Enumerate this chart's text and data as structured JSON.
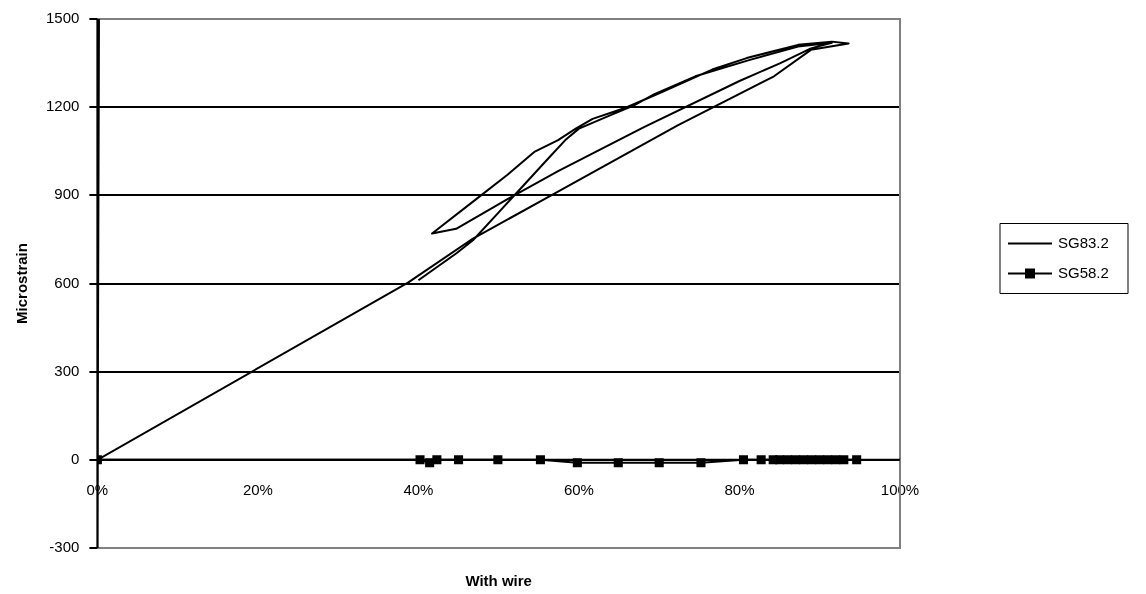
{
  "chart_data": {
    "type": "scatter",
    "xlabel": "With wire",
    "ylabel": "Microstrain",
    "xlim": [
      0,
      100
    ],
    "xticks": [
      {
        "value": 0,
        "label": "0%"
      },
      {
        "value": 20,
        "label": "20%"
      },
      {
        "value": 40,
        "label": "40%"
      },
      {
        "value": 60,
        "label": "60%"
      },
      {
        "value": 80,
        "label": "80%"
      },
      {
        "value": 100,
        "label": "100%"
      }
    ],
    "ylim": [
      -300,
      1500
    ],
    "yticks": [
      -300,
      0,
      300,
      600,
      900,
      1200,
      1500
    ],
    "grid": "y",
    "legend": "right",
    "line_style": "solid",
    "series": [
      {
        "name": "SG83.2",
        "type": "line",
        "marker": "none",
        "color": "#000000",
        "x": [
          0.2,
          0,
          0,
          38.7,
          46.8,
          55.7,
          72.3,
          84.3,
          88.9,
          93.6,
          91.5,
          87.3,
          80.9,
          76.6,
          70.2,
          65.9,
          61.7,
          59.6,
          57.4,
          54.5,
          51.1,
          47.2,
          41.7,
          44.7,
          51.1,
          57.4,
          68.1,
          80.0,
          85.1,
          88.9,
          91.5,
          87.3,
          81.3,
          74.5,
          69.4,
          66.8,
          63.8,
          60.0,
          58.3,
          56.2,
          53.2,
          50.2,
          46.8,
          44.7,
          40.0
        ],
        "values": [
          1500,
          -300,
          0,
          603,
          753,
          887,
          1138,
          1305,
          1395,
          1417,
          1423,
          1412,
          1367,
          1328,
          1250,
          1199,
          1160,
          1127,
          1088,
          1049,
          970,
          887,
          770,
          786,
          887,
          982,
          1132,
          1289,
          1350,
          1400,
          1419,
          1406,
          1361,
          1305,
          1244,
          1205,
          1171,
          1127,
          1088,
          1026,
          937,
          848,
          747,
          702,
          611
        ]
      },
      {
        "name": "SG58.2",
        "type": "line",
        "marker": "square",
        "color": "#000000",
        "x": [
          0,
          40.2,
          41.4,
          42.3,
          45.0,
          49.9,
          55.2,
          59.8,
          64.9,
          70.0,
          75.2,
          80.5,
          82.7,
          84.2,
          85,
          86,
          87,
          88,
          89,
          90,
          91,
          92,
          93,
          94.6
        ],
        "values": [
          0,
          0,
          -10,
          0,
          0,
          0,
          0,
          -10,
          -10,
          -10,
          -10,
          0,
          0,
          0,
          0,
          0,
          0,
          0,
          0,
          0,
          0,
          0,
          0,
          0
        ]
      }
    ]
  }
}
